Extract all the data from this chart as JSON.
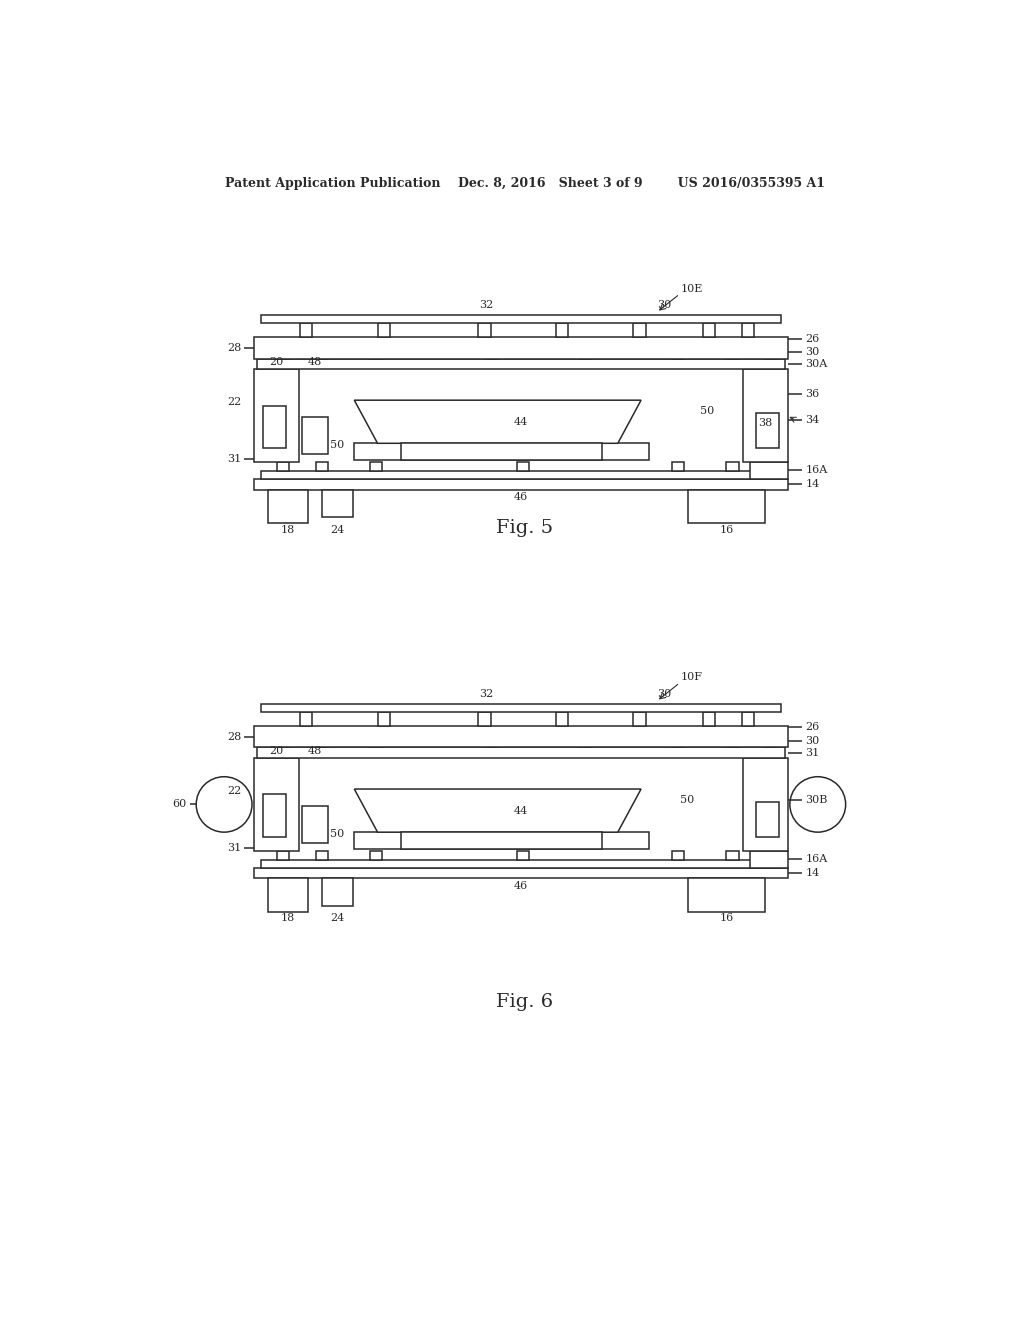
{
  "bg_color": "#ffffff",
  "line_color": "#2a2a2a",
  "lw": 1.1,
  "header": "Patent Application Publication    Dec. 8, 2016   Sheet 3 of 9        US 2016/0355395 A1",
  "fig5_caption": "Fig. 5",
  "fig6_caption": "Fig. 6"
}
